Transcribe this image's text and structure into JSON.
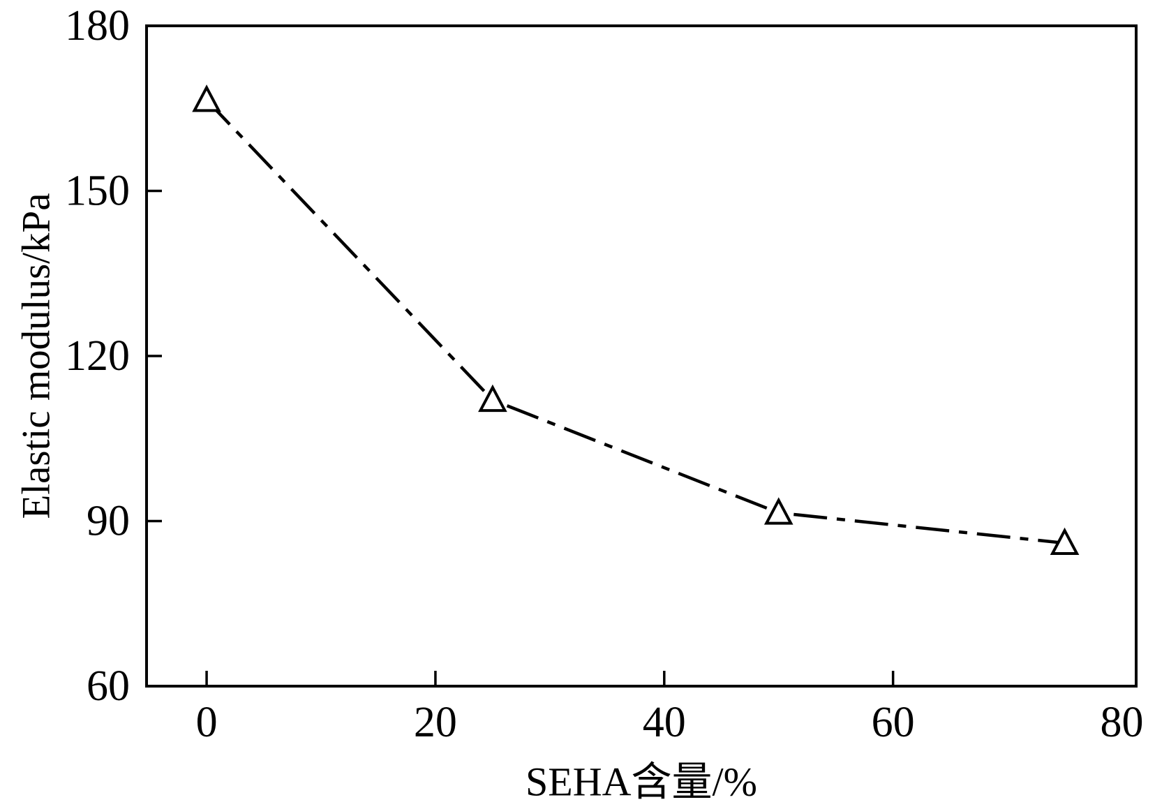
{
  "figure": {
    "background_color": "#ffffff",
    "foreground_color": "#000000"
  },
  "chart_data": {
    "type": "line",
    "title": "",
    "xlabel": "SEHA含量/%",
    "ylabel": "Elastic modulus/kPa",
    "grid": false,
    "legend": "none",
    "x_axis": {
      "lim": [
        -5.25,
        81.25
      ],
      "tick_labels": [
        0,
        20,
        40,
        60,
        80
      ],
      "tick_marks": [
        0,
        20,
        40,
        60
      ],
      "ticks_direction": "in"
    },
    "y_axis": {
      "lim": [
        60,
        180
      ],
      "tick_labels": [
        60,
        90,
        120,
        150,
        180
      ],
      "tick_marks": [
        90,
        120,
        150
      ],
      "ticks_direction": "in"
    },
    "series": [
      {
        "name": "elastic-modulus-vs-seha-content",
        "marker": "open-up-triangle",
        "line_style": "dash-dot",
        "color": "#000000",
        "x": [
          0,
          25,
          50,
          75
        ],
        "y": [
          166.5,
          112,
          91.5,
          86
        ]
      }
    ]
  }
}
